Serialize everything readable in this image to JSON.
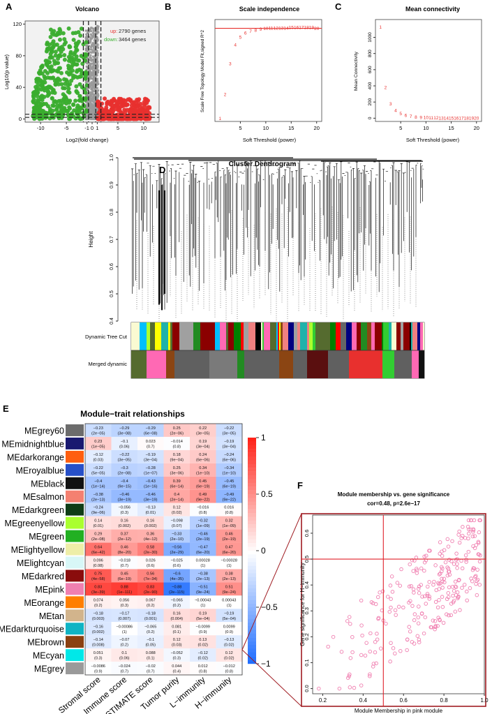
{
  "panels": {
    "A": "A",
    "B": "B",
    "C": "C",
    "D": "D",
    "E": "E",
    "F": "F"
  },
  "chart_data": [
    {
      "panel": "A",
      "type": "scatter",
      "title": "Volcano",
      "xlabel": "Log2(fold change)",
      "ylabel": "Log10(p value)",
      "xlim": [
        -13,
        13
      ],
      "ylim": [
        -4,
        124
      ],
      "xticks": [
        -10,
        -5,
        -1,
        0,
        1,
        5,
        10
      ],
      "yticks": [
        0,
        40,
        80,
        120
      ],
      "legend": [
        {
          "label": "up:",
          "text": "2790 genes",
          "color": "#e8302e"
        },
        {
          "label": "down:",
          "text": "3464 genes",
          "color": "#3aad2e"
        }
      ],
      "cutoffs": {
        "x": [
          -1,
          1
        ],
        "y": [
          1.3,
          5
        ]
      },
      "colors": {
        "up": "#e8302e",
        "down": "#3aad2e",
        "ns": "#9a9a9a",
        "panel": "#f2f2f2"
      }
    },
    {
      "panel": "B",
      "type": "scatter",
      "title": "Scale independence",
      "xlabel": "Soft Threshold (power)",
      "ylabel": "Scale Free Topology Model Fit,signed R^2",
      "xlim": [
        0,
        21
      ],
      "ylim": [
        0.05,
        0.98
      ],
      "xticks": [
        5,
        10,
        15,
        20
      ],
      "hline": 0.9,
      "x": [
        1,
        2,
        3,
        4,
        5,
        6,
        7,
        8,
        9,
        10,
        11,
        12,
        13,
        14,
        15,
        16,
        17,
        18,
        19,
        20
      ],
      "values": [
        0.08,
        0.3,
        0.58,
        0.75,
        0.82,
        0.86,
        0.875,
        0.885,
        0.895,
        0.9,
        0.905,
        0.905,
        0.905,
        0.905,
        0.91,
        0.91,
        0.91,
        0.91,
        0.91,
        0.9
      ],
      "labels": [
        "1",
        "2",
        "3",
        "4",
        "5",
        "6",
        "7",
        "8",
        "9",
        "10",
        "11",
        "12",
        "13",
        "14",
        "15",
        "16",
        "17",
        "18",
        "19",
        "20"
      ]
    },
    {
      "panel": "C",
      "type": "scatter",
      "title": "Mean connectivity",
      "xlabel": "Soft Threshold (power)",
      "ylabel": "Mean Connectivity",
      "xlim": [
        0,
        21
      ],
      "ylim": [
        -40,
        1220
      ],
      "xticks": [
        5,
        10,
        15,
        20
      ],
      "yticks": [
        0,
        200,
        400,
        600,
        800,
        1000
      ],
      "x": [
        1,
        2,
        3,
        4,
        5,
        6,
        7,
        8,
        9,
        10,
        11,
        12,
        13,
        14,
        15,
        16,
        17,
        18,
        19,
        20
      ],
      "values": [
        1130,
        385,
        180,
        100,
        60,
        38,
        25,
        18,
        13,
        10,
        8,
        6,
        5,
        4,
        3,
        3,
        2,
        2,
        2,
        2
      ],
      "labels": [
        "1",
        "2",
        "3",
        "4",
        "5",
        "6",
        "7",
        "8",
        "9",
        "10",
        "11",
        "12",
        "13",
        "14",
        "15",
        "16",
        "17",
        "18",
        "19",
        "20"
      ]
    },
    {
      "panel": "D",
      "type": "dendrogram",
      "title": "Cluster Dendrogram",
      "ylabel": "Height",
      "ylim": [
        0.4,
        1.0
      ],
      "yticks": [
        0.4,
        0.5,
        0.6,
        0.7,
        0.8,
        0.9,
        1.0
      ],
      "rows": [
        "Dynamic Tree Cut",
        "Merged dynamic"
      ]
    },
    {
      "panel": "E",
      "type": "heatmap",
      "title": "Module−trait relationships",
      "columns": [
        "Stromal score",
        "Immune score",
        "ESTIMATE score",
        "Tumor purity",
        "L−immunity",
        "H−immunity"
      ],
      "colorbar": {
        "ticks": [
          1,
          0.5,
          0,
          -0.5,
          -1
        ],
        "tick_labels": [
          "1",
          "0.5",
          "0",
          "−0.5",
          "−1"
        ]
      },
      "rows": [
        {
          "name": "MEgrey60",
          "color": "#6c6c6c",
          "r": [
            "−0.23",
            "−0.29",
            "−0.29",
            "0.25",
            "0.22",
            "−0.22"
          ],
          "p": [
            "(2e−05)",
            "(3e−08)",
            "(6e−08)",
            "(2e−06)",
            "(3e−05)",
            "(3e−05)"
          ]
        },
        {
          "name": "MEmidnightblue",
          "color": "#191970",
          "r": [
            "0.23",
            "−0.1",
            "0.023",
            "−0.014",
            "0.19",
            "−0.19"
          ],
          "p": [
            "(1e−05)",
            "(0.06)",
            "(0.7)",
            "(0.8)",
            "(3e−04)",
            "(3e−04)"
          ]
        },
        {
          "name": "MEdarkorange",
          "color": "#ff5f0f",
          "r": [
            "−0.12",
            "−0.22",
            "−0.19",
            "0.18",
            "0.24",
            "−0.24"
          ],
          "p": [
            "(0.03)",
            "(3e−05)",
            "(3e−04)",
            "(9e−04)",
            "(6e−06)",
            "(6e−06)"
          ]
        },
        {
          "name": "MEroyalblue",
          "color": "#2750c8",
          "r": [
            "−0.22",
            "−0.3",
            "−0.28",
            "0.25",
            "0.34",
            "−0.34"
          ],
          "p": [
            "(5e−05)",
            "(2e−08)",
            "(1e−07)",
            "(3e−06)",
            "(1e−10)",
            "(1e−10)"
          ]
        },
        {
          "name": "MEblack",
          "color": "#111111",
          "r": [
            "−0.4",
            "−0.4",
            "−0.43",
            "0.39",
            "0.45",
            "−0.45"
          ],
          "p": [
            "(1e−14)",
            "(9e−15)",
            "(1e−16)",
            "(6e−14)",
            "(6e−19)",
            "(6e−19)"
          ]
        },
        {
          "name": "MEsalmon",
          "color": "#f48070",
          "r": [
            "−0.38",
            "−0.46",
            "−0.46",
            "0.4",
            "0.49",
            "−0.49"
          ],
          "p": [
            "(2e−13)",
            "(3e−19)",
            "(3e−19)",
            "(2e−14)",
            "(9e−22)",
            "(9e−22)"
          ]
        },
        {
          "name": "MEdarkgreen",
          "color": "#0f3d16",
          "r": [
            "−0.24",
            "−0.056",
            "−0.13",
            "0.12",
            "−0.016",
            "0.016"
          ],
          "p": [
            "(9e−06)",
            "(0.3)",
            "(0.01)",
            "(0.02)",
            "(0.8)",
            "(0.8)"
          ]
        },
        {
          "name": "MEgreenyellow",
          "color": "#aaff2f",
          "r": [
            "0.14",
            "0.16",
            "0.16",
            "−0.098",
            "−0.32",
            "0.32"
          ],
          "p": [
            "(0.01)",
            "(0.002)",
            "(0.002)",
            "(0.07)",
            "(1e−09)",
            "(1e−09)"
          ]
        },
        {
          "name": "MEgreen",
          "color": "#22b022",
          "r": [
            "0.29",
            "0.37",
            "0.36",
            "−0.33",
            "−0.46",
            "0.46"
          ],
          "p": [
            "(2e−08)",
            "(2e−12)",
            "(4e−12)",
            "(2e−10)",
            "(2e−19)",
            "(2e−19)"
          ]
        },
        {
          "name": "MElightyellow",
          "color": "#eeeea8",
          "r": [
            "0.64",
            "0.46",
            "0.58",
            "−0.56",
            "−0.47",
            "0.47"
          ],
          "p": [
            "(6e−42)",
            "(8e−20)",
            "(2e−30)",
            "(2e−29)",
            "(6e−20)",
            "(6e−20)"
          ]
        },
        {
          "name": "MElightcyan",
          "color": "#d8f7f7",
          "r": [
            "0.096",
            "−0.018",
            "0.026",
            "−0.025",
            "0.00028",
            "−0.00028"
          ],
          "p": [
            "(0.08)",
            "(0.7)",
            "(0.6)",
            "(0.6)",
            "(1)",
            "(1)"
          ]
        },
        {
          "name": "MEdarkred",
          "color": "#8a0c0c",
          "r": [
            "0.75",
            "0.45",
            "0.56",
            "−0.6",
            "−0.38",
            "0.38"
          ],
          "p": [
            "(4e−58)",
            "(6e−19)",
            "(7e−34)",
            "(4e−35)",
            "(2e−13)",
            "(2e−13)"
          ]
        },
        {
          "name": "MEpink",
          "color": "#f07fb0",
          "r": [
            "0.83",
            "0.88",
            "0.83",
            "−0.88",
            "−0.51",
            "0.51"
          ],
          "p": [
            "(3e−39)",
            "(1e−111)",
            "(2e−90)",
            "(2e−115)",
            "(9e−24)",
            "(9e−24)"
          ]
        },
        {
          "name": "MEorange",
          "color": "#ff7e00",
          "r": [
            "0.074",
            "0.056",
            "0.067",
            "−0.065",
            "−0.00043",
            "0.00043"
          ],
          "p": [
            "(0.2)",
            "(0.3)",
            "(0.2)",
            "(0.2)",
            "(1)",
            "(1)"
          ]
        },
        {
          "name": "MEtan",
          "color": "#d2b48c",
          "r": [
            "−0.18",
            "−0.17",
            "−0.18",
            "0.16",
            "0.19",
            "−0.19"
          ],
          "p": [
            "(0.003)",
            "(0.007)",
            "(0.001)",
            "(0.004)",
            "(5e−04)",
            "(5e−04)"
          ]
        },
        {
          "name": "MEdarkturquoise",
          "color": "#10b4c4",
          "r": [
            "−0.16",
            "−0.00086",
            "−0.065",
            "0.081",
            "−0.0099",
            "0.0099"
          ],
          "p": [
            "(0.002)",
            "(1)",
            "(0.2)",
            "(0.1)",
            "(0.9)",
            "(0.9)"
          ]
        },
        {
          "name": "MEbrown",
          "color": "#8b4010",
          "r": [
            "−0.14",
            "−0.07",
            "−0.1",
            "0.12",
            "0.13",
            "−0.13"
          ],
          "p": [
            "(0.008)",
            "(0.2)",
            "(0.05)",
            "(0.03)",
            "(0.02)",
            "(0.02)"
          ]
        },
        {
          "name": "MEcyan",
          "color": "#00e8e8",
          "r": [
            "0.051",
            "0.1",
            "0.088",
            "−0.052",
            "−0.12",
            "0.12"
          ],
          "p": [
            "(0.3)",
            "(0.06)",
            "(0.1)",
            "(0.3)",
            "(0.02)",
            "(0.02)"
          ]
        },
        {
          "name": "MEgrey",
          "color": "#9a9a9a",
          "r": [
            "−0.0086",
            "−0.024",
            "−0.02",
            "0.044",
            "0.012",
            "−0.012"
          ],
          "p": [
            "(0.9)",
            "(0.7)",
            "(0.7)",
            "(0.4)",
            "(0.8)",
            "(0.8)"
          ]
        }
      ]
    },
    {
      "panel": "F",
      "type": "scatter",
      "title": "Module membership vs. gene significance",
      "subtitle": "cor=0.48, p=2.6e−17",
      "xlabel": "Module Membership in pink module",
      "ylabel": "Gene significance for  H−immunity",
      "xlim": [
        0.15,
        1.0
      ],
      "ylim": [
        -0.02,
        0.67
      ],
      "xticks": [
        0.2,
        0.4,
        0.6,
        0.8,
        1.0
      ],
      "yticks": [
        0.0,
        0.1,
        0.2,
        0.3,
        0.4,
        0.5,
        0.6
      ],
      "xtick_labels": [
        "0.2",
        "0.4",
        "0.6",
        "0.8",
        "1.0"
      ],
      "ytick_labels": [
        "0.0",
        "0.1",
        "0.2",
        "0.3",
        "0.4",
        "0.5",
        "0.6"
      ],
      "vline": 0.5,
      "hline": 0.5,
      "point_color": "#f07fb0",
      "line_color": "#e0202a"
    }
  ]
}
